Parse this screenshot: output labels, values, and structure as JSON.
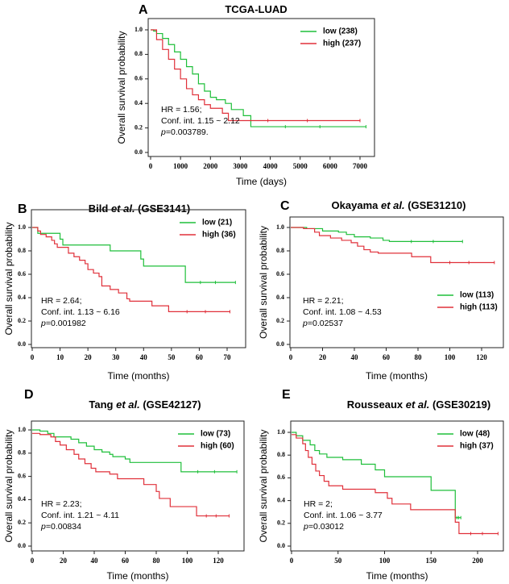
{
  "chart_data": [
    {
      "type": "line",
      "panel_label": "A",
      "title": {
        "prefix": "TCGA-LUAD",
        "italic": "",
        "suffix": ""
      },
      "xlabel": "Time (days)",
      "ylabel": "Overall survival probability",
      "xlim": [
        0,
        7200
      ],
      "ylim": [
        0,
        1.0
      ],
      "xticks": [
        0,
        1000,
        2000,
        3000,
        4000,
        5000,
        6000,
        7000
      ],
      "yticks": [
        "0.0",
        "0.2",
        "0.4",
        "0.6",
        "0.8",
        "1.0"
      ],
      "legend_position": "top-right",
      "stats": {
        "hr": "HR = 1.56;",
        "ci": "Conf. int. 1.15 ~ 2.12",
        "p_label": "p",
        "p_value": "=0.003789."
      },
      "series": [
        {
          "name": "low (238)",
          "color": "#1fbf3a",
          "points": [
            [
              0,
              1
            ],
            [
              100,
              0.99
            ],
            [
              200,
              0.97
            ],
            [
              400,
              0.93
            ],
            [
              600,
              0.88
            ],
            [
              800,
              0.82
            ],
            [
              1000,
              0.76
            ],
            [
              1200,
              0.7
            ],
            [
              1400,
              0.64
            ],
            [
              1600,
              0.56
            ],
            [
              1800,
              0.5
            ],
            [
              2000,
              0.45
            ],
            [
              2200,
              0.43
            ],
            [
              2500,
              0.4
            ],
            [
              2700,
              0.35
            ],
            [
              3100,
              0.3
            ],
            [
              3350,
              0.21
            ],
            [
              7200,
              0.21
            ]
          ]
        },
        {
          "name": "high (237)",
          "color": "#e0303a",
          "points": [
            [
              0,
              1
            ],
            [
              200,
              0.92
            ],
            [
              400,
              0.84
            ],
            [
              600,
              0.76
            ],
            [
              800,
              0.68
            ],
            [
              1000,
              0.6
            ],
            [
              1200,
              0.52
            ],
            [
              1400,
              0.47
            ],
            [
              1600,
              0.43
            ],
            [
              1800,
              0.39
            ],
            [
              2000,
              0.36
            ],
            [
              2400,
              0.32
            ],
            [
              2600,
              0.26
            ],
            [
              7000,
              0.26
            ]
          ]
        }
      ]
    },
    {
      "type": "line",
      "panel_label": "B",
      "title": {
        "prefix": "Bild ",
        "italic": "et al.",
        "suffix": " (GSE3141)"
      },
      "xlabel": "Time (months)",
      "ylabel": "Overall survival probability",
      "xlim": [
        0,
        74
      ],
      "ylim": [
        0,
        1.0
      ],
      "xticks": [
        0,
        10,
        20,
        30,
        40,
        50,
        60,
        70
      ],
      "yticks": [
        "0.0",
        "0.2",
        "0.4",
        "0.6",
        "0.8",
        "1.0"
      ],
      "legend_position": "top-right",
      "stats": {
        "hr": "HR = 2.64;",
        "ci": "Conf. int. 1.13 ~ 6.16",
        "p_label": "p",
        "p_value": "=0.001982"
      },
      "series": [
        {
          "name": "low (21)",
          "color": "#1fbf3a",
          "points": [
            [
              0,
              1
            ],
            [
              2,
              0.95
            ],
            [
              10,
              0.9
            ],
            [
              11,
              0.85
            ],
            [
              28,
              0.8
            ],
            [
              39,
              0.73
            ],
            [
              40,
              0.67
            ],
            [
              55,
              0.53
            ],
            [
              73,
              0.53
            ]
          ]
        },
        {
          "name": "high (36)",
          "color": "#e0303a",
          "points": [
            [
              0,
              1
            ],
            [
              2,
              0.97
            ],
            [
              3,
              0.94
            ],
            [
              5,
              0.92
            ],
            [
              7,
              0.89
            ],
            [
              8,
              0.86
            ],
            [
              9,
              0.83
            ],
            [
              13,
              0.78
            ],
            [
              15,
              0.75
            ],
            [
              17,
              0.72
            ],
            [
              19,
              0.69
            ],
            [
              20,
              0.64
            ],
            [
              22,
              0.61
            ],
            [
              24,
              0.58
            ],
            [
              25,
              0.5
            ],
            [
              28,
              0.47
            ],
            [
              31,
              0.44
            ],
            [
              34,
              0.39
            ],
            [
              35,
              0.37
            ],
            [
              43,
              0.33
            ],
            [
              49,
              0.28
            ],
            [
              71,
              0.28
            ]
          ]
        }
      ]
    },
    {
      "type": "line",
      "panel_label": "C",
      "title": {
        "prefix": "Okayama ",
        "italic": "et al.",
        "suffix": " (GSE31210)"
      },
      "xlabel": "Time (months)",
      "ylabel": "Overall survival probability",
      "xlim": [
        0,
        130
      ],
      "ylim": [
        0,
        1.0
      ],
      "xticks": [
        0,
        20,
        40,
        60,
        80,
        100,
        120
      ],
      "yticks": [
        "0.0",
        "0.2",
        "0.4",
        "0.6",
        "0.8",
        "1.0"
      ],
      "legend_position": "bottom-right",
      "stats": {
        "hr": "HR = 2.21;",
        "ci": "Conf. int. 1.08 ~ 4.53",
        "p_label": "p",
        "p_value": "=0.02537"
      },
      "series": [
        {
          "name": "low (113)",
          "color": "#1fbf3a",
          "points": [
            [
              0,
              1
            ],
            [
              10,
              0.99
            ],
            [
              20,
              0.97
            ],
            [
              30,
              0.96
            ],
            [
              35,
              0.94
            ],
            [
              40,
              0.92
            ],
            [
              50,
              0.91
            ],
            [
              58,
              0.89
            ],
            [
              62,
              0.88
            ],
            [
              108,
              0.88
            ]
          ]
        },
        {
          "name": "high (113)",
          "color": "#e0303a",
          "points": [
            [
              0,
              1
            ],
            [
              8,
              0.99
            ],
            [
              15,
              0.96
            ],
            [
              18,
              0.93
            ],
            [
              25,
              0.91
            ],
            [
              32,
              0.89
            ],
            [
              38,
              0.87
            ],
            [
              42,
              0.84
            ],
            [
              46,
              0.81
            ],
            [
              50,
              0.79
            ],
            [
              55,
              0.78
            ],
            [
              76,
              0.75
            ],
            [
              88,
              0.7
            ],
            [
              128,
              0.7
            ]
          ]
        }
      ]
    },
    {
      "type": "line",
      "panel_label": "D",
      "title": {
        "prefix": "Tang ",
        "italic": "et al.",
        "suffix": " (GSE42127)"
      },
      "xlabel": "Time (months)",
      "ylabel": "Overall survival probability",
      "xlim": [
        0,
        132
      ],
      "ylim": [
        0,
        1.0
      ],
      "xticks": [
        0,
        20,
        40,
        60,
        80,
        100,
        120
      ],
      "yticks": [
        "0.0",
        "0.2",
        "0.4",
        "0.6",
        "0.8",
        "1.0"
      ],
      "legend_position": "top-right",
      "stats": {
        "hr": "HR = 2.23;",
        "ci": "Conf. int. 1.21 ~ 4.11",
        "p_label": "p",
        "p_value": "=0.00834"
      },
      "series": [
        {
          "name": "low (73)",
          "color": "#1fbf3a",
          "points": [
            [
              0,
              1
            ],
            [
              5,
              0.99
            ],
            [
              10,
              0.97
            ],
            [
              14,
              0.94
            ],
            [
              25,
              0.92
            ],
            [
              30,
              0.89
            ],
            [
              35,
              0.86
            ],
            [
              40,
              0.83
            ],
            [
              45,
              0.81
            ],
            [
              50,
              0.79
            ],
            [
              52,
              0.77
            ],
            [
              60,
              0.75
            ],
            [
              63,
              0.72
            ],
            [
              96,
              0.64
            ],
            [
              132,
              0.64
            ]
          ]
        },
        {
          "name": "high (60)",
          "color": "#e0303a",
          "points": [
            [
              0,
              0.97
            ],
            [
              5,
              0.96
            ],
            [
              12,
              0.94
            ],
            [
              15,
              0.9
            ],
            [
              18,
              0.87
            ],
            [
              22,
              0.83
            ],
            [
              27,
              0.79
            ],
            [
              30,
              0.75
            ],
            [
              34,
              0.71
            ],
            [
              38,
              0.67
            ],
            [
              41,
              0.64
            ],
            [
              50,
              0.62
            ],
            [
              55,
              0.58
            ],
            [
              72,
              0.53
            ],
            [
              80,
              0.47
            ],
            [
              82,
              0.41
            ],
            [
              89,
              0.34
            ],
            [
              106,
              0.26
            ],
            [
              127,
              0.26
            ]
          ]
        }
      ]
    },
    {
      "type": "line",
      "panel_label": "E",
      "title": {
        "prefix": "Rousseaux ",
        "italic": "et al.",
        "suffix": " (GSE30219)"
      },
      "xlabel": "Time (months)",
      "ylabel": "Overall survival probability",
      "xlim": [
        0,
        228
      ],
      "ylim": [
        0,
        1.0
      ],
      "xticks": [
        0,
        50,
        100,
        150,
        200
      ],
      "yticks": [
        "0.0",
        "0.2",
        "0.4",
        "0.6",
        "0.8",
        "1.0"
      ],
      "legend_position": "top-right",
      "stats": {
        "hr": "HR = 2;",
        "ci": "Conf. int. 1.06 ~ 3.77",
        "p_label": "p",
        "p_value": "=0.03012"
      },
      "series": [
        {
          "name": "low (48)",
          "color": "#1fbf3a",
          "points": [
            [
              0,
              1
            ],
            [
              5,
              0.97
            ],
            [
              12,
              0.93
            ],
            [
              20,
              0.89
            ],
            [
              25,
              0.84
            ],
            [
              30,
              0.81
            ],
            [
              38,
              0.78
            ],
            [
              55,
              0.76
            ],
            [
              75,
              0.72
            ],
            [
              90,
              0.67
            ],
            [
              100,
              0.61
            ],
            [
              150,
              0.49
            ],
            [
              176,
              0.25
            ],
            [
              182,
              0.25
            ]
          ]
        },
        {
          "name": "high (37)",
          "color": "#e0303a",
          "points": [
            [
              0,
              0.98
            ],
            [
              5,
              0.95
            ],
            [
              12,
              0.9
            ],
            [
              15,
              0.84
            ],
            [
              18,
              0.78
            ],
            [
              22,
              0.72
            ],
            [
              26,
              0.66
            ],
            [
              30,
              0.62
            ],
            [
              35,
              0.57
            ],
            [
              40,
              0.53
            ],
            [
              55,
              0.5
            ],
            [
              90,
              0.47
            ],
            [
              103,
              0.42
            ],
            [
              108,
              0.37
            ],
            [
              128,
              0.32
            ],
            [
              176,
              0.21
            ],
            [
              180,
              0.11
            ],
            [
              222,
              0.11
            ]
          ]
        }
      ]
    }
  ]
}
